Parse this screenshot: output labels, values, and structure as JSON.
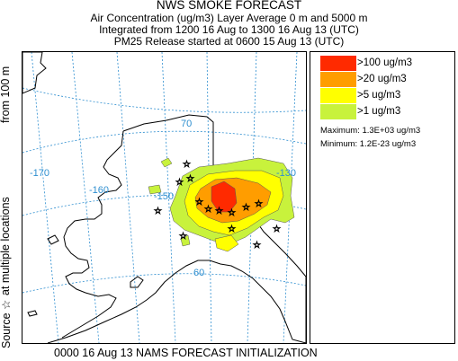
{
  "title": "NWS SMOKE FORECAST",
  "subtitle_lines": [
    "Air Concentration (ug/m3) Layer Average    0 m and  5000 m",
    "Integrated from 1200 16 Aug to 1300 16 Aug 13 (UTC)",
    "PM25 Release started at 0600 15 Aug 13 (UTC)"
  ],
  "side_labels": {
    "source": "Source ☆",
    "locations": "at multiple locations",
    "height": "from   100 m"
  },
  "legend": {
    "items": [
      {
        "label": ">100 ug/m3",
        "color": "#ff2a00"
      },
      {
        "label": ">20 ug/m3",
        "color": "#ff9d00"
      },
      {
        "label": ">5 ug/m3",
        "color": "#ffff00"
      },
      {
        "label": ">1 ug/m3",
        "color": "#c8f23c"
      }
    ],
    "maximum": "Maximum: 1.3E+03 ug/m3",
    "minimum": "Minimum: 1.2E-23 ug/m3"
  },
  "map": {
    "lat_labels": [
      "70",
      "60"
    ],
    "lon_labels": [
      "-170",
      "-160",
      "-150",
      "-130"
    ],
    "graticule_color": "#2f8fd0",
    "land_outline_color": "#000000"
  },
  "footer": "0000 16 Aug 13 NAMS FORECAST INITIALIZATION"
}
